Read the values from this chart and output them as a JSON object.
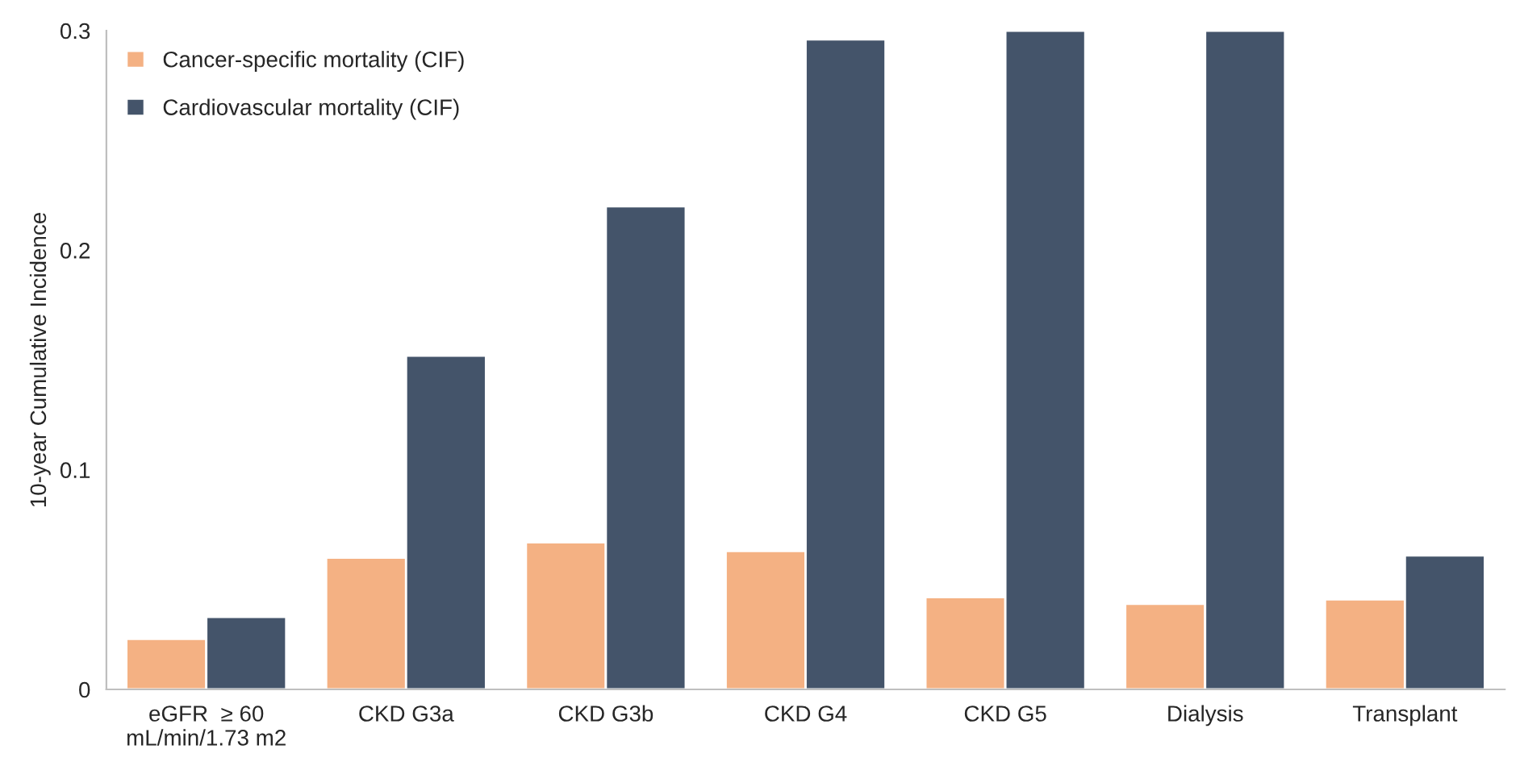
{
  "chart_data": {
    "type": "bar",
    "ylabel": "10-year Cumulative Incidence",
    "categories": [
      "eGFR  ≥ 60\nmL/min/1.73 m2",
      "CKD G3a",
      "CKD G3b",
      "CKD G4",
      "CKD G5",
      "Dialysis",
      "Transplant"
    ],
    "series": [
      {
        "name": "Cancer-specific mortality (CIF)",
        "color": "#f4b183",
        "values": [
          0.023,
          0.06,
          0.067,
          0.063,
          0.042,
          0.039,
          0.041
        ]
      },
      {
        "name": "Cardiovascular mortality (CIF)",
        "color": "#44546a",
        "values": [
          0.033,
          0.152,
          0.22,
          0.296,
          0.3,
          0.3,
          0.061
        ]
      }
    ],
    "ylim": [
      0,
      0.3
    ],
    "yticks": [
      0,
      0.1,
      0.2,
      0.3
    ],
    "legend": "top left",
    "grid": false
  }
}
